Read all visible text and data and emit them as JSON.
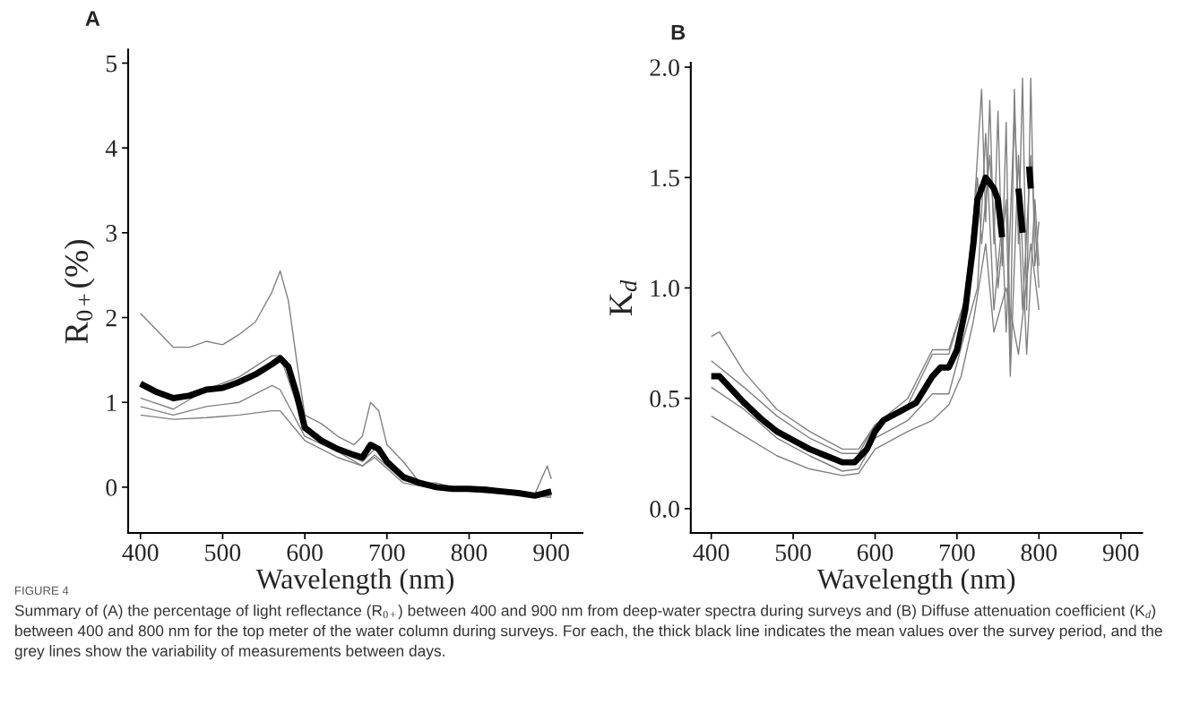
{
  "chart_data": [
    {
      "type": "line",
      "title": "A",
      "xlabel": "Wavelength (nm)",
      "ylabel": "R$_{0+}$(%)",
      "xlim": [
        385,
        938
      ],
      "ylim": [
        -0.54,
        5.16
      ],
      "xticks": [
        400,
        500,
        600,
        700,
        800,
        900
      ],
      "yticks": [
        0,
        1,
        2,
        3,
        4,
        5
      ],
      "grid": false,
      "legend": false,
      "marker": "none",
      "line_style": "solid",
      "annotations": [
        "FIGURE 4",
        "Summary of (A) the percentage of light reflectance (R$_{0+}$) between 400 and 900 nm from deep-water spectra during surveys and (B) Diffuse attenuation coefficient (K$_{d}$) between 400 and 800 nm for the top meter of the water column during surveys. For each, the thick black line indicates the mean values over the survey period, and the grey lines show the variability of measurements between days."
      ],
      "series": [
        {
          "color": "#808080",
          "x": [
            400,
            420,
            440,
            460,
            480,
            500,
            520,
            540,
            560,
            570,
            580,
            590,
            600,
            620,
            640,
            660,
            670,
            680,
            690,
            700,
            720,
            740,
            760,
            780,
            800,
            820,
            840,
            860,
            880,
            895,
            900
          ],
          "values": [
            2.05,
            1.85,
            1.65,
            1.65,
            1.72,
            1.68,
            1.8,
            1.95,
            2.3,
            2.55,
            2.2,
            1.5,
            0.85,
            0.75,
            0.6,
            0.5,
            0.6,
            1.0,
            0.9,
            0.5,
            0.3,
            0.05,
            0.05,
            0.0,
            0.0,
            0.0,
            -0.05,
            -0.05,
            -0.08,
            0.25,
            0.1
          ]
        },
        {
          "color": "#808080",
          "x": [
            400,
            440,
            480,
            520,
            560,
            570,
            600,
            640,
            670,
            685,
            720,
            760,
            800,
            900
          ],
          "values": [
            1.05,
            0.92,
            1.15,
            1.3,
            1.55,
            1.55,
            0.7,
            0.45,
            0.3,
            0.45,
            0.1,
            0.0,
            -0.02,
            -0.1
          ]
        },
        {
          "color": "#808080",
          "x": [
            400,
            440,
            480,
            520,
            560,
            570,
            600,
            640,
            670,
            685,
            720,
            760,
            900
          ],
          "values": [
            0.95,
            0.85,
            0.95,
            1.0,
            1.2,
            1.15,
            0.6,
            0.42,
            0.25,
            0.38,
            0.08,
            -0.02,
            -0.12
          ]
        },
        {
          "color": "#808080",
          "x": [
            400,
            440,
            480,
            520,
            560,
            570,
            600,
            640,
            670,
            685,
            720,
            760,
            900
          ],
          "values": [
            0.85,
            0.8,
            0.82,
            0.85,
            0.9,
            0.9,
            0.55,
            0.35,
            0.25,
            0.35,
            0.05,
            -0.02,
            -0.1
          ]
        },
        {
          "color": "#000000",
          "x": [
            400,
            420,
            440,
            460,
            480,
            500,
            520,
            540,
            560,
            570,
            580,
            590,
            600,
            620,
            640,
            660,
            670,
            680,
            690,
            700,
            720,
            740,
            760,
            780,
            800,
            820,
            840,
            860,
            880,
            900
          ],
          "values": [
            1.22,
            1.12,
            1.05,
            1.08,
            1.15,
            1.17,
            1.24,
            1.33,
            1.45,
            1.52,
            1.42,
            1.1,
            0.7,
            0.55,
            0.45,
            0.38,
            0.35,
            0.5,
            0.45,
            0.3,
            0.12,
            0.05,
            0.0,
            -0.02,
            -0.02,
            -0.03,
            -0.05,
            -0.07,
            -0.1,
            -0.05
          ]
        }
      ]
    },
    {
      "type": "line",
      "title": "B",
      "xlabel": "Wavelength (nm)",
      "ylabel": "K$_{d}$",
      "xlim": [
        375,
        926
      ],
      "ylim": [
        -0.11,
        2.02
      ],
      "xticks": [
        400,
        500,
        600,
        700,
        800,
        900
      ],
      "yticks": [
        {
          "value": 0,
          "label": "0.0"
        },
        0.5,
        {
          "value": 1,
          "label": "1.0"
        },
        1.5,
        {
          "value": 2,
          "label": "2.0"
        }
      ],
      "grid": false,
      "legend": false,
      "marker": "none",
      "line_style": "solid",
      "series": [
        {
          "color": "#808080",
          "x": [
            400,
            410,
            440,
            480,
            520,
            560,
            580,
            600,
            640,
            670,
            690,
            710,
            720,
            730,
            735,
            740,
            745,
            750,
            755,
            760,
            765,
            770,
            775,
            780,
            785,
            790,
            795,
            800
          ],
          "values": [
            0.78,
            0.8,
            0.62,
            0.45,
            0.35,
            0.27,
            0.27,
            0.38,
            0.5,
            0.72,
            0.72,
            0.95,
            1.3,
            1.9,
            1.3,
            1.85,
            1.2,
            1.8,
            1.1,
            1.75,
            0.7,
            1.9,
            1.2,
            1.95,
            0.9,
            1.95,
            1.1,
            1.3
          ]
        },
        {
          "color": "#808080",
          "x": [
            400,
            440,
            480,
            520,
            560,
            580,
            600,
            640,
            670,
            690,
            710,
            725,
            730,
            740,
            750,
            760,
            765,
            775,
            785,
            795,
            800
          ],
          "values": [
            0.67,
            0.55,
            0.42,
            0.32,
            0.25,
            0.25,
            0.38,
            0.47,
            0.7,
            0.7,
            0.95,
            1.5,
            1.2,
            1.6,
            1.0,
            1.4,
            0.6,
            1.6,
            0.7,
            1.4,
            1.1
          ]
        },
        {
          "color": "#808080",
          "x": [
            400,
            440,
            480,
            520,
            560,
            580,
            600,
            640,
            670,
            690,
            710,
            725,
            735,
            745,
            755,
            760,
            770,
            780,
            790,
            800
          ],
          "values": [
            0.55,
            0.45,
            0.32,
            0.24,
            0.17,
            0.18,
            0.32,
            0.4,
            0.52,
            0.52,
            0.8,
            1.0,
            1.7,
            0.9,
            1.3,
            0.8,
            1.8,
            0.9,
            1.6,
            1.0
          ]
        },
        {
          "color": "#808080",
          "x": [
            400,
            440,
            480,
            520,
            560,
            580,
            600,
            640,
            670,
            690,
            705,
            720,
            735,
            745,
            760,
            775,
            790,
            800
          ],
          "values": [
            0.42,
            0.33,
            0.24,
            0.18,
            0.15,
            0.16,
            0.27,
            0.35,
            0.4,
            0.47,
            0.6,
            0.85,
            1.2,
            0.8,
            1.0,
            0.7,
            1.2,
            0.9
          ]
        },
        {
          "color": "#000000",
          "x": [
            400,
            410,
            420,
            440,
            460,
            480,
            500,
            520,
            540,
            560,
            575,
            590,
            600,
            610,
            630,
            650,
            670,
            680,
            690,
            700,
            710,
            720,
            725,
            735,
            745,
            750,
            755,
            760,
            775,
            780,
            785,
            788,
            790
          ],
          "values": [
            0.6,
            0.6,
            0.56,
            0.48,
            0.41,
            0.35,
            0.31,
            0.27,
            0.24,
            0.21,
            0.21,
            0.27,
            0.35,
            0.4,
            0.44,
            0.48,
            0.6,
            0.64,
            0.64,
            0.72,
            0.9,
            1.2,
            1.4,
            1.5,
            1.45,
            1.4,
            1.23,
            null,
            1.45,
            1.25,
            null,
            1.55,
            1.45
          ]
        }
      ]
    }
  ]
}
